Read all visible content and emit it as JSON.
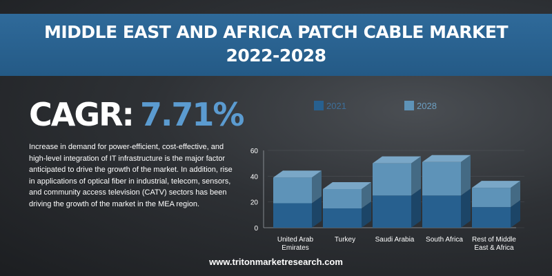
{
  "header": {
    "title_line1": "MIDDLE EAST AND AFRICA PATCH CABLE MARKET",
    "title_line2": "2022-2028"
  },
  "cagr": {
    "label": "CAGR:",
    "value": "7.71%"
  },
  "description": "Increase in demand for power-efficient, cost-effective, and high-level integration of IT infrastructure is the major factor anticipated to drive the growth of the market. In addition, rise in applications of optical fiber in industrial, telecom, sensors, and community access television (CATV) sectors has been driving the growth of the market in the MEA region.",
  "footer": {
    "url": "www.tritonmarketresearch.com"
  },
  "colors": {
    "banner": "#2a6394",
    "accent": "#5b9bd0",
    "series_2021": "#27608f",
    "series_2028": "#5e93b8"
  },
  "chart_data": {
    "type": "bar",
    "stacked": true,
    "three_d": true,
    "categories": [
      [
        "United Arab",
        "Emirates"
      ],
      [
        "Turkey"
      ],
      [
        "Saudi Arabia"
      ],
      [
        "South Africa"
      ],
      [
        "Rest of Middle",
        "East & Africa"
      ]
    ],
    "series": [
      {
        "name": "2021",
        "values": [
          19,
          15,
          25,
          25,
          16
        ],
        "color": "#27608f"
      },
      {
        "name": "2028",
        "values": [
          20,
          15,
          25,
          26,
          15
        ],
        "color": "#5e93b8"
      }
    ],
    "ylim": [
      0,
      60
    ],
    "yticks": [
      0,
      20,
      40,
      60
    ],
    "legend_position": "top"
  }
}
